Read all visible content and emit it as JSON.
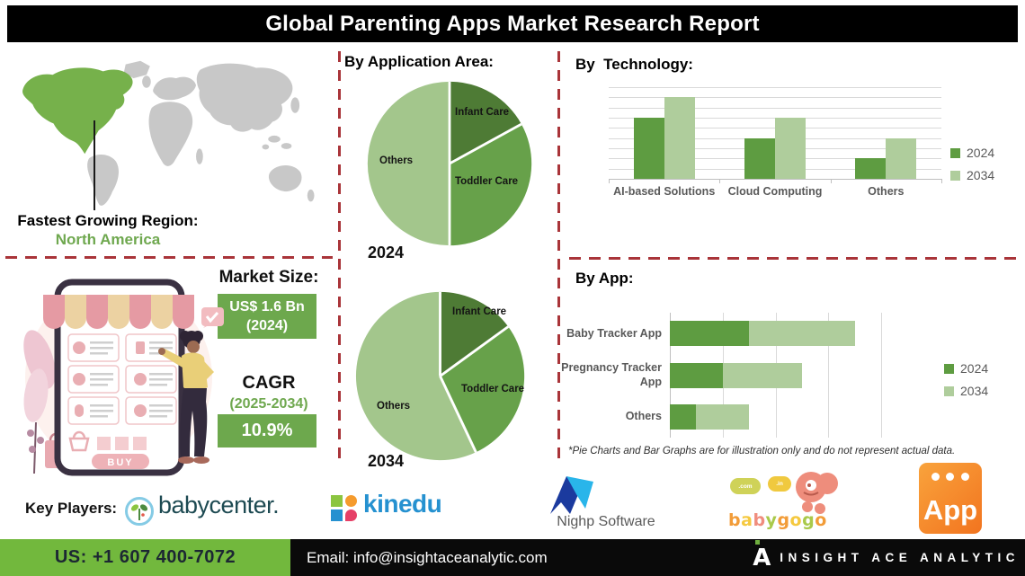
{
  "title": "Global Parenting Apps Market Research Report",
  "region": {
    "heading": "Fastest Growing Region:",
    "value": "North America"
  },
  "market": {
    "size_heading": "Market Size:",
    "size_value": "US$ 1.6 Bn",
    "size_year": "(2024)",
    "cagr_heading": "CAGR",
    "cagr_period": "(2025-2034)",
    "cagr_value": "10.9%"
  },
  "illustration": {
    "buy_label": "BUY"
  },
  "sections": {
    "application": {
      "heading": "By Application Area:"
    },
    "technology": {
      "heading": "By  Technology:"
    },
    "app": {
      "heading": "By App:",
      "disclaimer": "*Pie Charts and Bar Graphs are for illustration only and do not represent actual data."
    }
  },
  "chart_data": [
    {
      "id": "application-2024",
      "type": "pie",
      "title": "2024",
      "labels": [
        "Infant Care",
        "Toddler Care",
        "Others"
      ],
      "values": [
        17,
        33,
        50
      ],
      "colors": [
        "#4e7b35",
        "#67a14a",
        "#a3c68c"
      ],
      "note": "illustrative only"
    },
    {
      "id": "application-2034",
      "type": "pie",
      "title": "2034",
      "labels": [
        "Infant Care",
        "Toddler Care",
        "Others"
      ],
      "values": [
        15,
        28,
        57
      ],
      "colors": [
        "#4e7b35",
        "#67a14a",
        "#a3c68c"
      ],
      "note": "illustrative only"
    },
    {
      "id": "technology",
      "type": "bar",
      "categories": [
        "AI-based Solutions",
        "Cloud Computing",
        "Others"
      ],
      "series": [
        {
          "name": "2024",
          "color": "#5e9c41",
          "values": [
            6,
            4,
            2
          ]
        },
        {
          "name": "2034",
          "color": "#afcd9c",
          "values": [
            8,
            6,
            4
          ]
        }
      ],
      "ylim": [
        0,
        9
      ],
      "grid": true,
      "legend_position": "right",
      "note": "illustrative only"
    },
    {
      "id": "app",
      "type": "bar-horizontal-stacked",
      "categories": [
        "Baby Tracker App",
        "Pregnancy Tracker App",
        "Others"
      ],
      "series": [
        {
          "name": "2024",
          "color": "#5e9c41",
          "values": [
            1.5,
            1.0,
            0.5
          ]
        },
        {
          "name": "2034",
          "color": "#afcd9c",
          "values": [
            2.0,
            1.5,
            1.0
          ]
        }
      ],
      "xlim": [
        0,
        4
      ],
      "grid": true,
      "legend_position": "right",
      "note": "illustrative only"
    }
  ],
  "key_players": {
    "heading": "Key Players:",
    "babycenter": {
      "name": "babycenter."
    },
    "kinedu": {
      "name": "kinedu"
    },
    "nighp": {
      "name": "Nighp Software"
    },
    "babygogo": {
      "name": "babygogo",
      "letter_colors": [
        "#f29c38",
        "#f5c93f",
        "#f08d7e",
        "#a9c94a",
        "#f29c38",
        "#f5c93f",
        "#a9c94a",
        "#f29c38"
      ],
      "cloud1": ".com",
      "cloud2": ".in"
    },
    "app_store": {
      "name": "App"
    }
  },
  "footer": {
    "phone": "US: +1 607 400-7072",
    "email": "Email: info@insightaceanalytic.com",
    "brand": "INSIGHT ACE ANALYTIC"
  },
  "colors": {
    "banner_bg": "#000000",
    "title_text": "#ffffff",
    "dashed_line": "#a93439",
    "accent_green": "#6fa84f",
    "box_green": "#6da84d",
    "map_green": "#76b14b",
    "map_gray": "#c8c8c8",
    "series_2024": "#5e9c41",
    "series_2034": "#afcd9c",
    "footer_green": "#72b83d",
    "kinedu_blue": "#2591d0",
    "babycenter_teal": "#1d4a52",
    "nighp_dark": "#1b3a9e",
    "nighp_light": "#29b5ea",
    "app_orange": "#f5881f"
  }
}
